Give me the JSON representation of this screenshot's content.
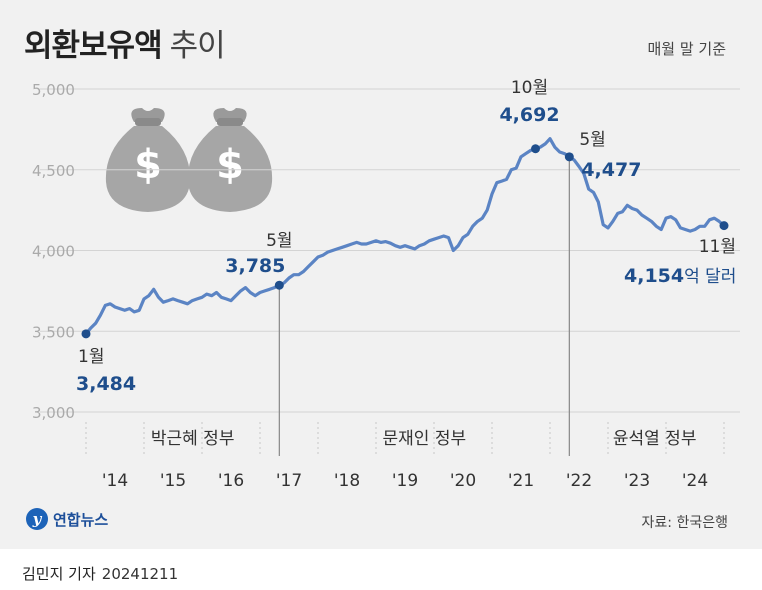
{
  "header": {
    "title": "외환보유액",
    "title_suffix": "추이",
    "basis_note": "매월 말 기준"
  },
  "footer": {
    "logo_text": "연합뉴스",
    "source": "자료: 한국은행",
    "author": "김민지 기자",
    "date": "20241211"
  },
  "chart_data": {
    "type": "line",
    "ylim": [
      3000,
      5000
    ],
    "yticks": [
      "3,000",
      "3,500",
      "4,000",
      "4,500",
      "5,000"
    ],
    "xticks": [
      "'14",
      "'15",
      "'16",
      "'17",
      "'18",
      "'19",
      "'20",
      "'21",
      "'22",
      "'23",
      "'24"
    ],
    "grid": true,
    "line_color": "#5b84c4",
    "highlight_color": "#1f4e8c",
    "series": [
      {
        "values": [
          3484,
          3520,
          3550,
          3600,
          3660,
          3670,
          3650,
          3640,
          3630,
          3640,
          3620,
          3630,
          3700,
          3720,
          3760,
          3710,
          3680,
          3690,
          3700,
          3690,
          3680,
          3670,
          3690,
          3700,
          3710,
          3730,
          3720,
          3740,
          3710,
          3700,
          3690,
          3720,
          3750,
          3770,
          3740,
          3720,
          3740,
          3750,
          3760,
          3770,
          3785,
          3800,
          3830,
          3850,
          3850,
          3870,
          3900,
          3930,
          3960,
          3970,
          3990,
          4000,
          4010,
          4020,
          4030,
          4040,
          4050,
          4040,
          4040,
          4050,
          4060,
          4050,
          4055,
          4045,
          4030,
          4020,
          4030,
          4020,
          4010,
          4030,
          4040,
          4060,
          4070,
          4080,
          4090,
          4080,
          4000,
          4030,
          4080,
          4100,
          4150,
          4180,
          4200,
          4250,
          4350,
          4420,
          4430,
          4440,
          4500,
          4510,
          4580,
          4600,
          4620,
          4630,
          4640,
          4660,
          4692,
          4640,
          4610,
          4600,
          4580,
          4560,
          4520,
          4477,
          4380,
          4360,
          4300,
          4160,
          4140,
          4180,
          4230,
          4240,
          4280,
          4260,
          4250,
          4220,
          4200,
          4180,
          4150,
          4130,
          4200,
          4210,
          4190,
          4140,
          4130,
          4120,
          4130,
          4150,
          4150,
          4190,
          4200,
          4180,
          4154
        ]
      }
    ],
    "point_labels": [
      {
        "month": "1월",
        "value": "3,484"
      },
      {
        "month": "5월",
        "value": "3,785"
      },
      {
        "month": "10월",
        "value": "4,692"
      },
      {
        "month": "5월",
        "value": "4,477"
      },
      {
        "month": "11월",
        "value": "4,154",
        "unit": "억 달러"
      }
    ],
    "periods": [
      "박근혜 정부",
      "문재인 정부",
      "윤석열 정부"
    ]
  }
}
